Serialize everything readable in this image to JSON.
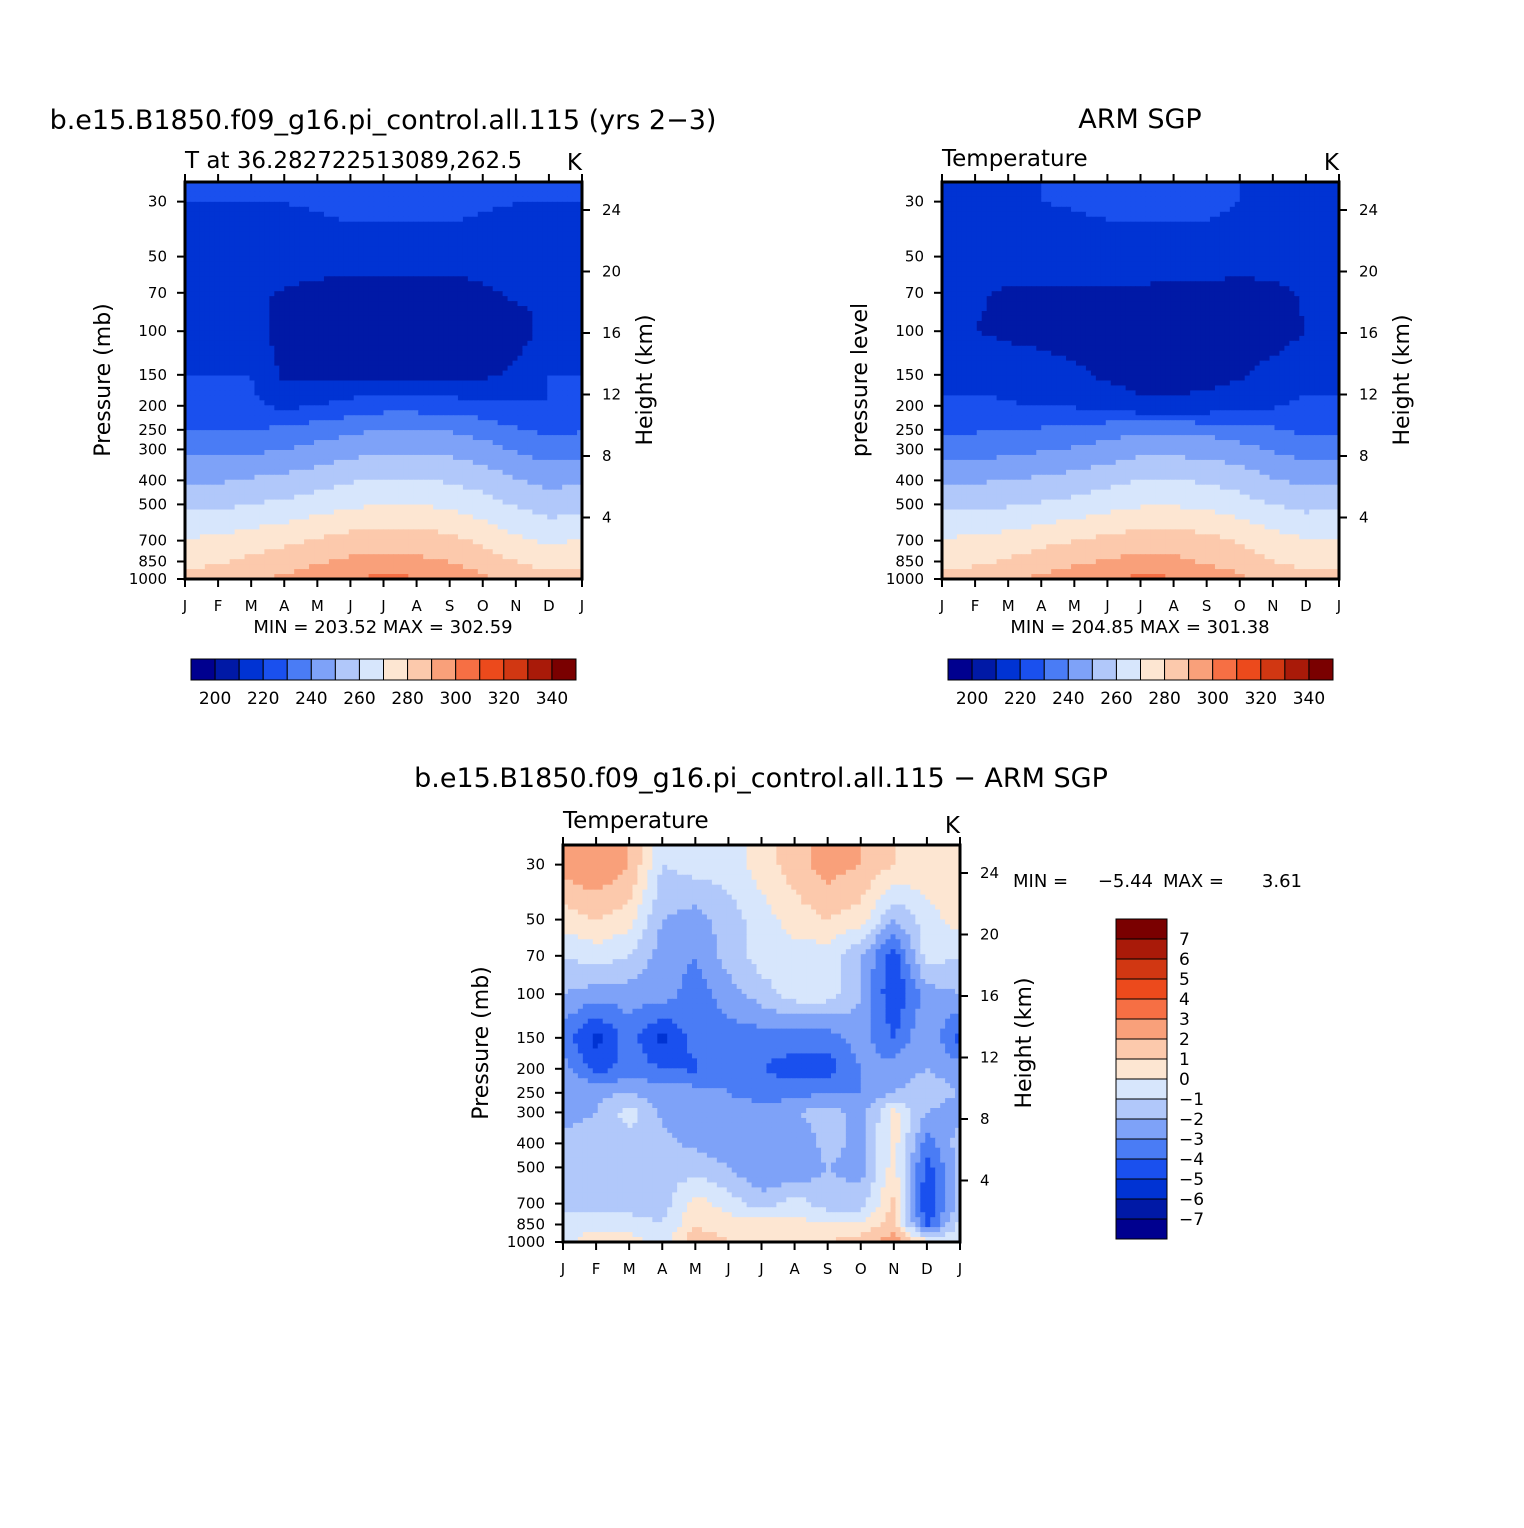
{
  "colors": {
    "temp_scale": [
      "#00008f",
      "#0019a6",
      "#0033d3",
      "#1a50ee",
      "#4a7cf5",
      "#7ea2f8",
      "#b1c8fa",
      "#d7e6fc",
      "#fde6d2",
      "#fcc9ac",
      "#f9a07a",
      "#f66f44",
      "#ec4a1c",
      "#d13712",
      "#a91a09",
      "#7a0000"
    ],
    "diff_scale": [
      "#00008f",
      "#0019a6",
      "#0033d3",
      "#1a50ee",
      "#4a7cf5",
      "#7ea2f8",
      "#b1c8fa",
      "#d7e6fc",
      "#fde6d2",
      "#fcc9ac",
      "#f9a07a",
      "#f66f44",
      "#ec4a1c",
      "#d13712",
      "#a91a09",
      "#7a0000"
    ],
    "axis": "#000000"
  },
  "panels": {
    "model": {
      "title": "b.e15.B1850.f09_g16.pi_control.all.115 (yrs 2−3)",
      "subtitle": "T at 36.282722513089,262.5",
      "units": "K",
      "ylabel": "Pressure (mb)",
      "y2label": "Height (km)",
      "minmax": "MIN = 203.52 MAX = 302.59"
    },
    "obs": {
      "title": "ARM SGP",
      "subtitle": "Temperature",
      "units": "K",
      "ylabel": "pressure level",
      "y2label": "Height (km)",
      "minmax": "MIN = 204.85 MAX = 301.38"
    },
    "diff": {
      "title": "b.e15.B1850.f09_g16.pi_control.all.115 − ARM SGP",
      "subtitle": "Temperature",
      "units": "K",
      "ylabel": "Pressure (mb)",
      "y2label": "Height (km)",
      "min_text": "MIN =",
      "min_value": "−5.44",
      "max_text": "MAX =",
      "max_value": "3.61"
    }
  },
  "chart_data": [
    {
      "type": "heatmap",
      "id": "model",
      "title": "b.e15.B1850.f09_g16.pi_control.all.115 (yrs 2−3)",
      "subtitle": "T at 36.282722513089,262.5",
      "xlabels": [
        "J",
        "F",
        "M",
        "A",
        "M",
        "J",
        "J",
        "A",
        "S",
        "O",
        "N",
        "D",
        "J"
      ],
      "pressure_levels": [
        1000,
        850,
        700,
        500,
        400,
        300,
        250,
        200,
        150,
        100,
        70,
        50,
        30
      ],
      "ylabel": "Pressure (mb)",
      "y2label": "Height (km)",
      "height_ticks_km": [
        4,
        8,
        12,
        16,
        20,
        24
      ],
      "values_K": [
        [
          283,
          286,
          289,
          292,
          296,
          300,
          302,
          301,
          297,
          292,
          287,
          284,
          283
        ],
        [
          277,
          279,
          282,
          285,
          289,
          292,
          293,
          292,
          290,
          285,
          280,
          276,
          277
        ],
        [
          271,
          272,
          275,
          278,
          281,
          284,
          285,
          285,
          283,
          278,
          272,
          268,
          271
        ],
        [
          257,
          258,
          260,
          262,
          265,
          268,
          270,
          270,
          268,
          264,
          259,
          255,
          257
        ],
        [
          249,
          249,
          251,
          253,
          256,
          259,
          261,
          261,
          259,
          256,
          251,
          247,
          249
        ],
        [
          237,
          237,
          238,
          240,
          243,
          246,
          248,
          248,
          247,
          244,
          239,
          235,
          237
        ],
        [
          229,
          229,
          230,
          232,
          235,
          238,
          240,
          240,
          239,
          236,
          231,
          228,
          229
        ],
        [
          222,
          222,
          222,
          218,
          220,
          224,
          226,
          226,
          225,
          223,
          221,
          220,
          222
        ],
        [
          220,
          220,
          220,
          208,
          208,
          208,
          207,
          207,
          207,
          208,
          212,
          220,
          220
        ],
        [
          218,
          215,
          214,
          206,
          205,
          205,
          205,
          205,
          205,
          205,
          205,
          214,
          218
        ],
        [
          214,
          212,
          212,
          209,
          207,
          206,
          206,
          206,
          206,
          208,
          212,
          210,
          214
        ],
        [
          219,
          219,
          219,
          216,
          215,
          215,
          214,
          214,
          214,
          215,
          217,
          219,
          219
        ],
        [
          220,
          220,
          220,
          220,
          221,
          223,
          224,
          224,
          224,
          221,
          220,
          220,
          220
        ]
      ],
      "contour_levels_K": [
        195,
        200,
        205,
        210,
        215,
        220,
        225,
        230,
        235,
        240,
        245,
        250,
        255,
        260,
        265,
        270,
        275,
        280,
        285,
        290,
        295,
        300,
        305
      ],
      "colorbar_labels": [
        "200",
        "220",
        "240",
        "260",
        "280",
        "300",
        "320",
        "340"
      ],
      "colorbar_range": [
        190,
        350
      ],
      "min": 203.52,
      "max": 302.59,
      "units": "K"
    },
    {
      "type": "heatmap",
      "id": "obs",
      "title": "ARM SGP",
      "subtitle": "Temperature",
      "xlabels": [
        "J",
        "F",
        "M",
        "A",
        "M",
        "J",
        "J",
        "A",
        "S",
        "O",
        "N",
        "D",
        "J"
      ],
      "pressure_levels": [
        1000,
        850,
        700,
        500,
        400,
        300,
        250,
        200,
        150,
        100,
        70,
        50,
        30
      ],
      "ylabel": "pressure level",
      "y2label": "Height (km)",
      "height_ticks_km": [
        4,
        8,
        12,
        16,
        20,
        24
      ],
      "values_K": [
        [
          283,
          285,
          288,
          292,
          296,
          300,
          302,
          301,
          297,
          292,
          287,
          284,
          283
        ],
        [
          277,
          278,
          281,
          285,
          288,
          291,
          293,
          292,
          289,
          285,
          280,
          277,
          277
        ],
        [
          271,
          272,
          274,
          277,
          280,
          283,
          285,
          285,
          283,
          279,
          274,
          271,
          271
        ],
        [
          258,
          258,
          259,
          261,
          263,
          266,
          269,
          269,
          268,
          264,
          260,
          257,
          258
        ],
        [
          249,
          249,
          250,
          252,
          254,
          257,
          260,
          260,
          259,
          256,
          251,
          248,
          249
        ],
        [
          236,
          236,
          237,
          239,
          241,
          244,
          247,
          247,
          246,
          243,
          239,
          236,
          236
        ],
        [
          229,
          229,
          229,
          231,
          233,
          236,
          238,
          238,
          237,
          235,
          231,
          228,
          229
        ],
        [
          222,
          222,
          221,
          219,
          219,
          216,
          212,
          212,
          213,
          215,
          219,
          222,
          222
        ],
        [
          216,
          216,
          216,
          214,
          212,
          208,
          206,
          206,
          207,
          209,
          213,
          216,
          216
        ],
        [
          212,
          210,
          208,
          207,
          206,
          205,
          205,
          205,
          205,
          205,
          206,
          210,
          212
        ],
        [
          211,
          211,
          209,
          209,
          209,
          209,
          209,
          208,
          208,
          207,
          208,
          211,
          211
        ],
        [
          214,
          214,
          214,
          214,
          214,
          214,
          214,
          214,
          214,
          214,
          214,
          214,
          214
        ],
        [
          218,
          218,
          219,
          220,
          221,
          223,
          224,
          224,
          223,
          220,
          218,
          218,
          218
        ]
      ],
      "contour_levels_K": [
        195,
        200,
        205,
        210,
        215,
        220,
        225,
        230,
        235,
        240,
        245,
        250,
        255,
        260,
        265,
        270,
        275,
        280,
        285,
        290,
        295,
        300,
        305
      ],
      "colorbar_labels": [
        "200",
        "220",
        "240",
        "260",
        "280",
        "300",
        "320",
        "340"
      ],
      "colorbar_range": [
        190,
        350
      ],
      "min": 204.85,
      "max": 301.38,
      "units": "K"
    },
    {
      "type": "heatmap",
      "id": "diff",
      "title": "b.e15.B1850.f09_g16.pi_control.all.115 − ARM SGP",
      "subtitle": "Temperature",
      "xlabels": [
        "J",
        "F",
        "M",
        "A",
        "M",
        "J",
        "J",
        "A",
        "S",
        "O",
        "N",
        "D",
        "J"
      ],
      "pressure_levels": [
        1000,
        850,
        700,
        500,
        400,
        300,
        250,
        200,
        150,
        100,
        70,
        50,
        30
      ],
      "ylabel": "Pressure (mb)",
      "y2label": "Height (km)",
      "height_ticks_km": [
        4,
        8,
        12,
        16,
        20,
        24
      ],
      "values_K": [
        [
          -0.5,
          0.8,
          0.5,
          -0.5,
          1.8,
          1.0,
          0.3,
          0.5,
          1.0,
          1.5,
          2.5,
          0.5,
          -0.5
        ],
        [
          -0.5,
          -0.5,
          -0.5,
          -1.0,
          0.8,
          0.5,
          0.5,
          0.3,
          0.2,
          0.2,
          1.5,
          -4.5,
          -0.5
        ],
        [
          -1.5,
          -1.5,
          -1.5,
          -1.5,
          0.5,
          -0.5,
          -1.5,
          -0.5,
          -1.5,
          -1.5,
          1.2,
          -5.0,
          -1.5
        ],
        [
          -1.5,
          -1.5,
          -1.5,
          -1.5,
          -1.5,
          -2.0,
          -3.0,
          -3.0,
          -2.0,
          -2.5,
          0.5,
          -4.5,
          -1.5
        ],
        [
          -1.5,
          -1.5,
          -1.5,
          -1.8,
          -2.2,
          -2.5,
          -3.0,
          -3.0,
          -1.5,
          -2.5,
          0.5,
          -3.5,
          -1.5
        ],
        [
          -2.5,
          -2.0,
          -0.5,
          -2.2,
          -2.5,
          -2.5,
          -2.5,
          -2.0,
          -1.5,
          -2.5,
          0.3,
          -2.0,
          -2.5
        ],
        [
          -2.0,
          -2.2,
          -2.0,
          -2.5,
          -2.5,
          -3.0,
          -3.5,
          -3.5,
          -3.0,
          -3.0,
          -2.0,
          -1.5,
          -2.0
        ],
        [
          -2.5,
          -4.5,
          -3.5,
          -4.0,
          -4.2,
          -3.0,
          -4.0,
          -4.5,
          -4.5,
          -3.0,
          -2.5,
          -2.0,
          -2.5
        ],
        [
          -3.5,
          -5.4,
          -3.5,
          -5.3,
          -3.5,
          -3.5,
          -3.5,
          -3.5,
          -3.5,
          -2.5,
          -4.0,
          -2.0,
          -4.5
        ],
        [
          -2.0,
          -2.5,
          -2.5,
          -2.5,
          -3.5,
          -2.5,
          -1.5,
          -0.5,
          -0.5,
          -2.0,
          -5.0,
          -2.5,
          -2.0
        ],
        [
          -1.0,
          -0.5,
          -1.0,
          -2.5,
          -3.0,
          -1.5,
          -0.5,
          -0.5,
          -0.5,
          -2.0,
          -4.5,
          -0.5,
          -1.0
        ],
        [
          0.5,
          1.0,
          0.5,
          -2.0,
          -2.5,
          -1.5,
          -0.5,
          0.5,
          1.0,
          0.5,
          -2.0,
          -0.5,
          0.5
        ],
        [
          2.5,
          3.0,
          2.0,
          -1.0,
          -0.5,
          -0.5,
          0.5,
          1.5,
          2.5,
          2.0,
          1.0,
          0.8,
          0.5
        ]
      ],
      "contour_levels_K": [
        -7,
        -6,
        -5,
        -4,
        -3,
        -2,
        -1,
        0,
        1,
        2,
        3,
        4,
        5,
        6,
        7
      ],
      "colorbar_labels": [
        "7",
        "6",
        "5",
        "4",
        "3",
        "2",
        "1",
        "0",
        "−1",
        "−2",
        "−3",
        "−4",
        "−5",
        "−6",
        "−7"
      ],
      "colorbar_range": [
        -8,
        8
      ],
      "min": -5.44,
      "max": 3.61,
      "units": "K"
    }
  ]
}
